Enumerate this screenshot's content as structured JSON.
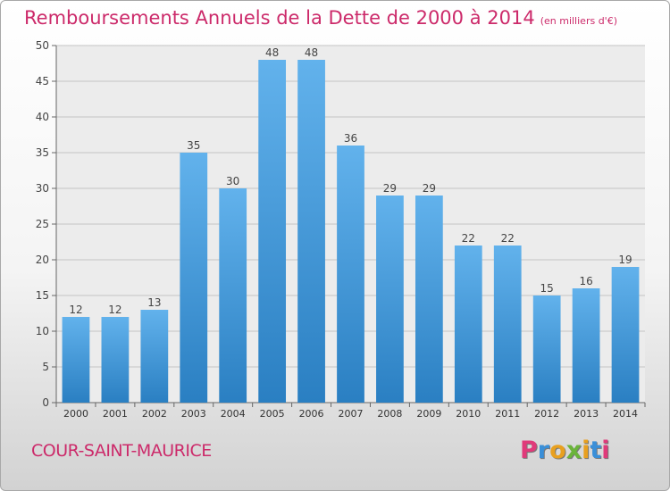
{
  "header": {
    "title": "Remboursements Annuels de la Dette de 2000 à 2014",
    "unit": "(en milliers d'€)"
  },
  "footer": {
    "city": "COUR-SAINT-MAURICE",
    "logo": "Proxiti"
  },
  "colors": {
    "accent": "#cc2a6a",
    "bar_top": "#62b2ec",
    "bar_bottom": "#2a7fc2",
    "logo_letters": [
      "#e03a7a",
      "#3a8fd8",
      "#e8a020",
      "#6bb43a",
      "#e8a020",
      "#3a8fd8",
      "#e03a7a"
    ]
  },
  "chart_data": {
    "type": "bar",
    "categories": [
      "2000",
      "2001",
      "2002",
      "2003",
      "2004",
      "2005",
      "2006",
      "2007",
      "2008",
      "2009",
      "2010",
      "2011",
      "2012",
      "2013",
      "2014"
    ],
    "values": [
      12,
      12,
      13,
      35,
      30,
      48,
      48,
      36,
      29,
      29,
      22,
      22,
      15,
      16,
      19
    ],
    "ylim": [
      0,
      50
    ],
    "yticks": [
      0,
      5,
      10,
      15,
      20,
      25,
      30,
      35,
      40,
      45,
      50
    ],
    "grid": true,
    "data_labels": true
  }
}
